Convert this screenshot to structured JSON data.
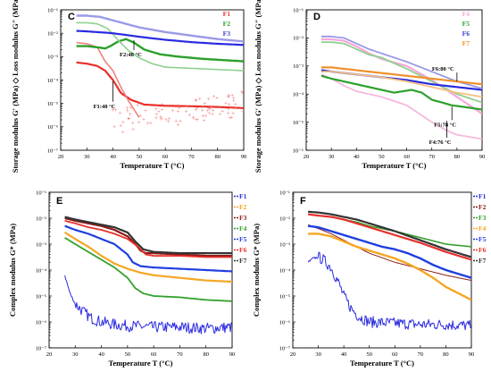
{
  "chart_data": [
    {
      "panel": "C",
      "type": "line",
      "xlabel": "Temperature T (°C)",
      "ylabel": "Storage modulus G′ (MPa) ◇  Loss modulus G″ (MPa) ▲",
      "xlim": [
        20,
        90
      ],
      "ylim_exp": [
        -7,
        -1
      ],
      "x_ticks": [
        20,
        30,
        40,
        50,
        60,
        70,
        80,
        90
      ],
      "y_tick_labels": [
        "10⁻¹",
        "10⁻²",
        "10⁻³",
        "10⁻⁴",
        "10⁻⁵",
        "10⁻⁶",
        "10⁻⁷"
      ],
      "legend_position": "top-right",
      "legend": [
        {
          "label": "F1",
          "color": "#e8302a"
        },
        {
          "label": "F2",
          "color": "#2ca02c"
        },
        {
          "label": "F3",
          "color": "#3a3ad8"
        }
      ],
      "series": [
        {
          "name": "F1",
          "color": "#e8302a",
          "width": 2.2,
          "x": [
            26,
            30,
            34,
            37,
            40,
            43,
            47,
            52,
            60,
            70,
            80,
            90
          ],
          "y_exp": [
            -3.25,
            -3.3,
            -3.4,
            -3.6,
            -4.0,
            -4.55,
            -4.85,
            -5.05,
            -5.1,
            -5.12,
            -5.15,
            -5.2
          ]
        },
        {
          "name": "F1",
          "color": "#f08080",
          "width": 1.6,
          "x": [
            26,
            30,
            34,
            37,
            40,
            43,
            46,
            50
          ],
          "y_exp": [
            -2.4,
            -2.45,
            -2.6,
            -3.2,
            -3.6,
            -4.3,
            -4.9,
            -5.6
          ],
          "scatter_x": [
            40,
            90
          ],
          "scatter_y_exp": [
            -5.8,
            -5.1
          ]
        },
        {
          "name": "F2",
          "color": "#2ca02c",
          "width": 2.4,
          "x": [
            26,
            30,
            34,
            37,
            39,
            42,
            45,
            48,
            52,
            58,
            65,
            75,
            90
          ],
          "y_exp": [
            -2.55,
            -2.55,
            -2.6,
            -2.65,
            -2.55,
            -2.35,
            -2.25,
            -2.4,
            -2.7,
            -2.9,
            -3.0,
            -3.1,
            -3.2
          ]
        },
        {
          "name": "F2",
          "color": "#8fd08f",
          "width": 1.6,
          "x": [
            26,
            30,
            34,
            38,
            42,
            46,
            50,
            55,
            60,
            70,
            80,
            90
          ],
          "y_exp": [
            -1.55,
            -1.55,
            -1.6,
            -1.8,
            -2.3,
            -2.75,
            -3.05,
            -3.3,
            -3.45,
            -3.5,
            -3.55,
            -3.6
          ]
        },
        {
          "name": "F3",
          "color": "#2a2ae0",
          "width": 2.2,
          "x": [
            26,
            30,
            40,
            50,
            60,
            70,
            80,
            90
          ],
          "y_exp": [
            -1.9,
            -1.92,
            -2.0,
            -2.15,
            -2.28,
            -2.38,
            -2.45,
            -2.5
          ]
        },
        {
          "name": "F3",
          "color": "#9a9ae8",
          "width": 2.4,
          "x": [
            26,
            30,
            35,
            40,
            45,
            50,
            60,
            70,
            80,
            90
          ],
          "y_exp": [
            -1.25,
            -1.25,
            -1.3,
            -1.45,
            -1.6,
            -1.75,
            -1.95,
            -2.1,
            -2.25,
            -2.35
          ]
        }
      ],
      "annotations": [
        {
          "text": "F2:48 °C",
          "x": 48,
          "y_exp": -2.3
        },
        {
          "text": "F1:40 °C",
          "x": 40,
          "y_exp": -4.05
        }
      ]
    },
    {
      "panel": "D",
      "type": "line",
      "xlabel": "Temperature T (°C)",
      "ylabel": "Storage modulus G′ (MPa) ◇  Loss modulus G″ (MPa) ▲",
      "xlim": [
        20,
        90
      ],
      "ylim_exp": [
        -6,
        -1
      ],
      "x_ticks": [
        20,
        30,
        40,
        50,
        60,
        70,
        80,
        90
      ],
      "y_tick_labels": [
        "10⁻¹",
        "10⁻²",
        "10⁻³",
        "10⁻⁴",
        "10⁻⁵",
        "10⁻⁶"
      ],
      "legend_position": "top-right",
      "legend": [
        {
          "label": "F4",
          "color": "#f7a8d8"
        },
        {
          "label": "F5",
          "color": "#2ca02c"
        },
        {
          "label": "F6",
          "color": "#3a3ad8"
        },
        {
          "label": "F7",
          "color": "#f0902c"
        }
      ],
      "series": [
        {
          "name": "F4",
          "color": "#f7a8d8",
          "width": 2.2,
          "x": [
            26,
            30,
            35,
            40,
            45,
            50,
            60,
            70,
            80,
            90
          ],
          "y_exp": [
            -2.05,
            -2.05,
            -2.1,
            -2.3,
            -2.55,
            -2.75,
            -3.0,
            -3.5,
            -4.1,
            -4.7
          ]
        },
        {
          "name": "F4",
          "color": "#f7b8e0",
          "width": 1.8,
          "x": [
            26,
            30,
            35,
            40,
            45,
            50,
            60,
            70,
            76,
            80,
            90
          ],
          "y_exp": [
            -3.3,
            -3.45,
            -3.7,
            -3.9,
            -4.0,
            -4.1,
            -4.4,
            -5.0,
            -5.3,
            -5.45,
            -5.6
          ]
        },
        {
          "name": "F5",
          "color": "#2ca02c",
          "width": 2.2,
          "x": [
            26,
            30,
            35,
            40,
            45,
            50,
            55,
            62,
            66,
            70,
            78,
            90
          ],
          "y_exp": [
            -3.35,
            -3.45,
            -3.55,
            -3.65,
            -3.75,
            -3.85,
            -3.95,
            -3.85,
            -3.95,
            -4.2,
            -4.4,
            -4.55
          ]
        },
        {
          "name": "F5",
          "color": "#8fd08f",
          "width": 1.8,
          "x": [
            26,
            30,
            35,
            40,
            45,
            50,
            60,
            70,
            80,
            90
          ],
          "y_exp": [
            -2.15,
            -2.15,
            -2.2,
            -2.4,
            -2.6,
            -2.7,
            -3.1,
            -3.55,
            -4.0,
            -4.3
          ]
        },
        {
          "name": "F6",
          "color": "#2a2ae0",
          "width": 2.2,
          "x": [
            26,
            30,
            40,
            50,
            60,
            70,
            80,
            90
          ],
          "y_exp": [
            -3.15,
            -3.2,
            -3.3,
            -3.4,
            -3.5,
            -3.65,
            -3.75,
            -3.85
          ]
        },
        {
          "name": "F6",
          "color": "#9a9ae8",
          "width": 1.8,
          "x": [
            26,
            30,
            35,
            40,
            45,
            50,
            60,
            70,
            80,
            90
          ],
          "y_exp": [
            -1.95,
            -1.95,
            -2.0,
            -2.2,
            -2.4,
            -2.55,
            -2.85,
            -3.2,
            -3.55,
            -3.8
          ]
        },
        {
          "name": "F7",
          "color": "#f0902c",
          "width": 2.2,
          "x": [
            26,
            30,
            40,
            50,
            60,
            70,
            80,
            90
          ],
          "y_exp": [
            -3.05,
            -3.05,
            -3.15,
            -3.25,
            -3.35,
            -3.45,
            -3.55,
            -3.65
          ]
        },
        {
          "name": "F7",
          "color": "#f5c080",
          "width": 1.8,
          "x": [
            26,
            30,
            40,
            50,
            60,
            70,
            80,
            90
          ],
          "y_exp": [
            -3.2,
            -3.2,
            -3.3,
            -3.4,
            -3.55,
            -3.75,
            -3.95,
            -4.1
          ]
        }
      ],
      "annotations": [
        {
          "text": "F6:80 °C",
          "x": 80,
          "y_exp": -3.55
        },
        {
          "text": "F5:78 °C",
          "x": 78,
          "y_exp": -4.45
        },
        {
          "text": "F4:76 °C",
          "x": 76,
          "y_exp": -4.95
        }
      ]
    },
    {
      "panel": "E",
      "type": "line",
      "xlabel": "Temperature T (°C)",
      "ylabel": "Complex modulus G* (MPa)",
      "xlim": [
        20,
        90
      ],
      "ylim_exp": [
        -7,
        -1
      ],
      "x_ticks": [
        20,
        30,
        40,
        50,
        60,
        70,
        80,
        90
      ],
      "y_tick_labels": [
        "10⁻¹",
        "10⁻²",
        "10⁻³",
        "10⁻⁴",
        "10⁻⁵",
        "10⁻⁶",
        "10⁻⁷"
      ],
      "legend_position": "right",
      "legend": [
        {
          "label": "F1",
          "color": "#2a2ae0"
        },
        {
          "label": "F2",
          "color": "#f5a623"
        },
        {
          "label": "F3",
          "color": "#8b1a1a"
        },
        {
          "label": "F4",
          "color": "#33a02c"
        },
        {
          "label": "F5",
          "color": "#1f3fe0"
        },
        {
          "label": "F6",
          "color": "#e8302a"
        },
        {
          "label": "F7",
          "color": "#333333"
        }
      ],
      "series": [
        {
          "name": "F1",
          "color": "#2a2ae0",
          "width": 1.0,
          "noisy": true,
          "x": [
            26,
            28,
            30,
            33,
            36,
            40,
            45,
            50,
            60,
            70,
            80,
            90
          ],
          "y_exp": [
            -4.2,
            -4.9,
            -5.3,
            -5.6,
            -5.85,
            -6.0,
            -6.1,
            -6.15,
            -6.2,
            -6.2,
            -6.25,
            -6.2
          ]
        },
        {
          "name": "F2",
          "color": "#f5a623",
          "width": 2.2,
          "x": [
            26,
            30,
            35,
            40,
            45,
            50,
            55,
            60,
            70,
            80,
            90
          ],
          "y_exp": [
            -2.55,
            -2.8,
            -3.1,
            -3.45,
            -3.75,
            -3.95,
            -4.1,
            -4.2,
            -4.3,
            -4.4,
            -4.45
          ]
        },
        {
          "name": "F3",
          "color": "#8b1a1a",
          "width": 2.2,
          "x": [
            26,
            30,
            35,
            40,
            45,
            50,
            53,
            55,
            57,
            60,
            70,
            80,
            90
          ],
          "y_exp": [
            -2.0,
            -2.1,
            -2.2,
            -2.3,
            -2.45,
            -2.7,
            -3.0,
            -3.25,
            -3.35,
            -3.35,
            -3.4,
            -3.45,
            -3.45
          ]
        },
        {
          "name": "F4",
          "color": "#33a02c",
          "width": 1.8,
          "x": [
            26,
            30,
            35,
            40,
            45,
            50,
            53,
            56,
            60,
            70,
            80,
            90
          ],
          "y_exp": [
            -2.75,
            -3.0,
            -3.3,
            -3.6,
            -3.9,
            -4.3,
            -4.7,
            -4.9,
            -5.0,
            -5.05,
            -5.15,
            -5.2
          ]
        },
        {
          "name": "F5",
          "color": "#1f3fe0",
          "width": 2.2,
          "x": [
            26,
            30,
            35,
            40,
            45,
            50,
            52,
            55,
            60,
            70,
            80,
            90
          ],
          "y_exp": [
            -2.3,
            -2.45,
            -2.6,
            -2.8,
            -3.0,
            -3.4,
            -3.7,
            -3.85,
            -3.9,
            -3.95,
            -4.0,
            -4.05
          ]
        },
        {
          "name": "F6",
          "color": "#e8302a",
          "width": 1.8,
          "x": [
            26,
            30,
            35,
            40,
            45,
            50,
            54,
            57,
            60,
            70,
            80,
            90
          ],
          "y_exp": [
            -2.1,
            -2.2,
            -2.35,
            -2.45,
            -2.6,
            -2.8,
            -3.1,
            -3.4,
            -3.45,
            -3.45,
            -3.5,
            -3.5
          ]
        },
        {
          "name": "F7",
          "color": "#333333",
          "width": 2.2,
          "x": [
            26,
            30,
            35,
            40,
            45,
            50,
            53,
            56,
            60,
            70,
            80,
            90
          ],
          "y_exp": [
            -1.95,
            -2.05,
            -2.15,
            -2.25,
            -2.35,
            -2.55,
            -2.9,
            -3.2,
            -3.3,
            -3.35,
            -3.35,
            -3.35
          ]
        }
      ]
    },
    {
      "panel": "F",
      "type": "line",
      "xlabel": "Temperature T (°C)",
      "ylabel": "Complex modulus G* (MPa)",
      "xlim": [
        20,
        90
      ],
      "ylim_exp": [
        -7,
        -1
      ],
      "x_ticks": [
        20,
        30,
        40,
        50,
        60,
        70,
        80,
        90
      ],
      "y_tick_labels": [
        "10⁻¹",
        "10⁻²",
        "10⁻³",
        "10⁻⁴",
        "10⁻⁵",
        "10⁻⁶",
        "10⁻⁷"
      ],
      "legend_position": "right",
      "legend": [
        {
          "label": "F1",
          "color": "#2a2ae0"
        },
        {
          "label": "F2",
          "color": "#8b1a1a"
        },
        {
          "label": "F3",
          "color": "#33a02c"
        },
        {
          "label": "F4",
          "color": "#f5a623"
        },
        {
          "label": "F5",
          "color": "#1f3fe0"
        },
        {
          "label": "F6",
          "color": "#e8302a"
        },
        {
          "label": "F7",
          "color": "#333333"
        }
      ],
      "series": [
        {
          "name": "F1",
          "color": "#2a2ae0",
          "width": 1.0,
          "noisy": true,
          "x": [
            26,
            28,
            30,
            32,
            35,
            38,
            40,
            43,
            46,
            50,
            60,
            70,
            80,
            90
          ],
          "y_exp": [
            -3.7,
            -3.55,
            -3.5,
            -3.6,
            -3.9,
            -4.5,
            -5.0,
            -5.5,
            -5.8,
            -6.0,
            -6.05,
            -6.1,
            -6.1,
            -6.15
          ]
        },
        {
          "name": "F2",
          "color": "#8b1a1a",
          "width": 1.0,
          "x": [
            26,
            30,
            35,
            40,
            45,
            50,
            60,
            70,
            80,
            90
          ],
          "y_exp": [
            -2.25,
            -2.4,
            -2.6,
            -2.85,
            -3.1,
            -3.35,
            -3.7,
            -3.95,
            -4.2,
            -4.4
          ]
        },
        {
          "name": "F3",
          "color": "#33a02c",
          "width": 1.6,
          "x": [
            26,
            30,
            35,
            40,
            45,
            50,
            60,
            70,
            80,
            90
          ],
          "y_exp": [
            -1.85,
            -1.9,
            -1.95,
            -2.05,
            -2.15,
            -2.3,
            -2.5,
            -2.75,
            -3.0,
            -3.1
          ]
        },
        {
          "name": "F4",
          "color": "#f5a623",
          "width": 2.4,
          "x": [
            26,
            30,
            35,
            40,
            45,
            50,
            55,
            60,
            65,
            70,
            75,
            80,
            85,
            90
          ],
          "y_exp": [
            -2.6,
            -2.6,
            -2.7,
            -2.9,
            -3.1,
            -3.25,
            -3.4,
            -3.55,
            -3.75,
            -4.0,
            -4.3,
            -4.65,
            -4.9,
            -5.15
          ]
        },
        {
          "name": "F5",
          "color": "#1f3fe0",
          "width": 2.4,
          "x": [
            26,
            30,
            35,
            40,
            45,
            50,
            55,
            60,
            65,
            70,
            75,
            80,
            85,
            90
          ],
          "y_exp": [
            -2.3,
            -2.35,
            -2.5,
            -2.65,
            -2.8,
            -2.95,
            -3.1,
            -3.2,
            -3.35,
            -3.55,
            -3.8,
            -4.0,
            -4.15,
            -4.3
          ]
        },
        {
          "name": "F6",
          "color": "#e8302a",
          "width": 2.2,
          "x": [
            26,
            30,
            35,
            40,
            45,
            50,
            60,
            70,
            80,
            90
          ],
          "y_exp": [
            -1.85,
            -1.9,
            -1.95,
            -2.05,
            -2.2,
            -2.35,
            -2.65,
            -2.95,
            -3.3,
            -3.6
          ]
        },
        {
          "name": "F7",
          "color": "#333333",
          "width": 2.2,
          "x": [
            26,
            30,
            35,
            40,
            45,
            50,
            60,
            70,
            80,
            90
          ],
          "y_exp": [
            -1.75,
            -1.78,
            -1.85,
            -1.95,
            -2.05,
            -2.2,
            -2.5,
            -2.85,
            -3.2,
            -3.5
          ]
        }
      ]
    }
  ]
}
